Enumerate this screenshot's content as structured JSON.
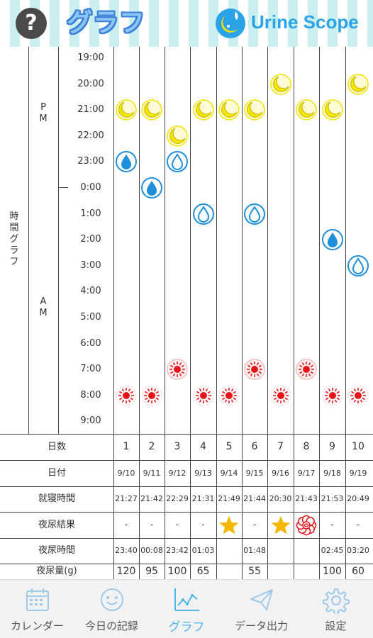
{
  "header": {
    "help_symbol": "?",
    "title": "グラフ",
    "logo_text": "Urine Scope",
    "title_color": "#8cc4f4",
    "logo_color": "#2aa3e8"
  },
  "graph": {
    "section_label": "時間グラフ",
    "pm_label": "P M",
    "am_label": "A M",
    "hours": [
      "19:00",
      "20:00",
      "21:00",
      "22:00",
      "23:00",
      "0:00",
      "1:00",
      "2:00",
      "3:00",
      "4:00",
      "5:00",
      "6:00",
      "7:00",
      "8:00",
      "9:00"
    ],
    "legend_icons": {
      "moon": "moon-icon",
      "drop_filled": "water-drop-filled-icon",
      "drop_outline": "water-drop-outline-icon",
      "sun": "sun-icon"
    },
    "days": [
      {
        "moon": "21:00",
        "drop": "23:00",
        "drop_style": "filled",
        "sun": "8:00",
        "sun_style": "outline"
      },
      {
        "moon": "21:00",
        "drop": "0:00",
        "drop_style": "filled",
        "sun": "8:00",
        "sun_style": "outline"
      },
      {
        "moon": "22:00",
        "drop": "23:00",
        "drop_style": "outline",
        "sun": "7:00",
        "sun_style": "ringed"
      },
      {
        "moon": "21:00",
        "drop": "1:00",
        "drop_style": "outline",
        "sun": "8:00",
        "sun_style": "outline"
      },
      {
        "moon": "21:00",
        "drop": null,
        "drop_style": null,
        "sun": "8:00",
        "sun_style": "outline"
      },
      {
        "moon": "21:00",
        "drop": "1:00",
        "drop_style": "outline",
        "sun": "7:00",
        "sun_style": "ringed"
      },
      {
        "moon": "20:00",
        "drop": null,
        "drop_style": null,
        "sun": "8:00",
        "sun_style": "outline"
      },
      {
        "moon": "21:00",
        "drop": null,
        "drop_style": null,
        "sun": "7:00",
        "sun_style": "ringed"
      },
      {
        "moon": "21:00",
        "drop": "2:00",
        "drop_style": "filled",
        "sun": "8:00",
        "sun_style": "outline"
      },
      {
        "moon": "20:00",
        "drop": "3:00",
        "drop_style": "outline",
        "sun": "8:00",
        "sun_style": "outline"
      }
    ]
  },
  "table": {
    "labels": {
      "day_number": "日数",
      "date": "日付",
      "bedtime": "就寝時間",
      "nocturia_result": "夜尿結果",
      "nocturia_time": "夜尿時間",
      "nocturia_volume": "夜尿量(g)"
    },
    "day_numbers": [
      "1",
      "2",
      "3",
      "4",
      "5",
      "6",
      "7",
      "8",
      "9",
      "10"
    ],
    "dates": [
      "9/10",
      "9/11",
      "9/12",
      "9/13",
      "9/14",
      "9/15",
      "9/16",
      "9/17",
      "9/18",
      "9/19"
    ],
    "bedtimes": [
      "21:27",
      "21:42",
      "22:29",
      "21:31",
      "21:49",
      "21:44",
      "20:30",
      "21:43",
      "21:53",
      "20:49"
    ],
    "results": [
      "-",
      "-",
      "-",
      "-",
      "star",
      "-",
      "star",
      "flower",
      "-",
      "-"
    ],
    "nocturia_times": [
      "23:40",
      "00:08",
      "23:42",
      "01:03",
      "",
      "01:48",
      "",
      "",
      "02:45",
      "03:20"
    ],
    "volumes": [
      "120",
      "95",
      "100",
      "65",
      "",
      "55",
      "",
      "",
      "100",
      "60"
    ]
  },
  "nav": {
    "items": [
      {
        "label": "カレンダー",
        "icon": "calendar-icon"
      },
      {
        "label": "今日の記録",
        "icon": "smiley-icon"
      },
      {
        "label": "グラフ",
        "icon": "chart-icon",
        "active": true
      },
      {
        "label": "データ出力",
        "icon": "send-icon"
      },
      {
        "label": "設定",
        "icon": "gear-icon"
      }
    ],
    "active_color": "#4fb8e8"
  },
  "colors": {
    "moon": "#f2e400",
    "drop": "#1e8fdb",
    "sun": "#e8141a",
    "star": "#f5b800"
  }
}
